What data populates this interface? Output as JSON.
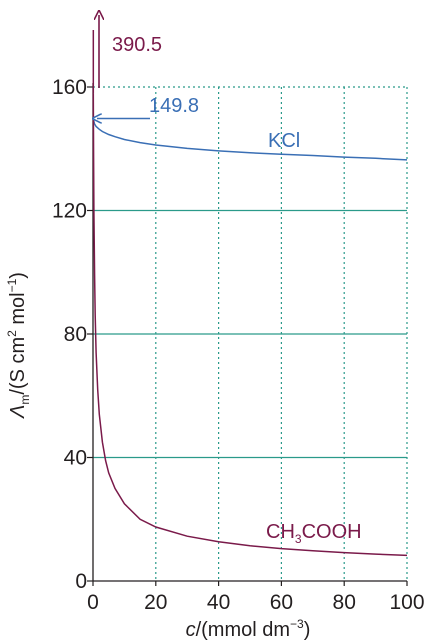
{
  "chart_data": {
    "type": "line",
    "xlabel": {
      "italic": "c",
      "rest": "/(mmol dm",
      "sup": "−3",
      "close": ")"
    },
    "ylabel": {
      "italic": "Λ",
      "sub": "m",
      "rest": "/(S cm",
      "sup2": "2",
      "mid": " mol",
      "sup3": "−1",
      "close": ")"
    },
    "xlim": [
      0,
      100
    ],
    "ylim": [
      0,
      160
    ],
    "xticks": [
      "0",
      "20",
      "40",
      "60",
      "80",
      "100"
    ],
    "yticks": [
      "0",
      "40",
      "80",
      "120",
      "160"
    ],
    "grid": true,
    "series": [
      {
        "name": "KCl",
        "color": "#3a6fb5",
        "x": [
          0,
          0.5,
          1,
          2,
          3,
          5,
          7,
          10,
          15,
          20,
          30,
          40,
          50,
          60,
          70,
          80,
          90,
          100
        ],
        "y": [
          149.8,
          148.0,
          147.2,
          146.3,
          145.6,
          144.6,
          143.9,
          143.0,
          142.0,
          141.2,
          140.1,
          139.3,
          138.7,
          138.2,
          137.8,
          137.3,
          136.9,
          136.4
        ]
      },
      {
        "name": "CH₃COOH",
        "name_parts": {
          "a": "CH",
          "sub": "3",
          "b": "COOH"
        },
        "color": "#7a1a4a",
        "x": [
          0.1,
          0.2,
          0.3,
          0.5,
          0.7,
          1,
          1.5,
          2,
          3,
          4,
          5,
          7,
          10,
          15,
          20,
          30,
          40,
          50,
          60,
          70,
          80,
          90,
          100
        ],
        "y": [
          158,
          137,
          120,
          99,
          86,
          74,
          62,
          54,
          45,
          39,
          35,
          30,
          25,
          20,
          17.5,
          14.5,
          12.7,
          11.4,
          10.5,
          9.8,
          9.2,
          8.7,
          8.3
        ]
      }
    ],
    "annotations": [
      {
        "text": "390.5",
        "color": "#7a1a4a",
        "note": "off-scale limiting value of CH3COOH at c = 0 (upward arrow)"
      },
      {
        "text": "149.8",
        "color": "#3a6fb5",
        "note": "limiting value of KCl at c = 0 (left arrow)"
      }
    ]
  }
}
